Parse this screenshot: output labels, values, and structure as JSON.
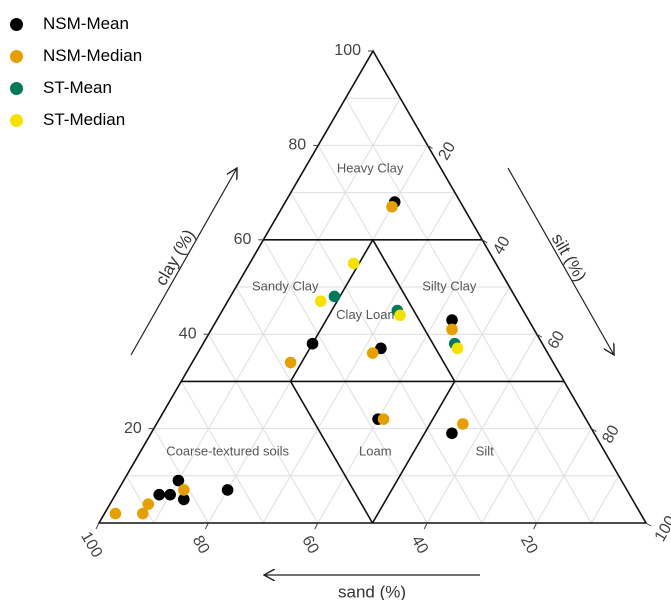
{
  "chart_data": {
    "type": "scatter",
    "subtype": "ternary",
    "axes": {
      "clay": {
        "label": "clay (%)",
        "ticks": [
          "20",
          "40",
          "60",
          "80",
          "100"
        ]
      },
      "silt": {
        "label": "silt (%)",
        "ticks": [
          "20",
          "40",
          "60",
          "80",
          "100"
        ]
      },
      "sand": {
        "label": "sand (%)",
        "ticks": [
          "100",
          "80",
          "60",
          "40",
          "20"
        ]
      }
    },
    "regions": [
      "Heavy Clay",
      "Sandy Clay",
      "Silty Clay",
      "Clay Loam",
      "Coarse-textured soils",
      "Loam",
      "Silt"
    ],
    "legend_position": "top-left",
    "series": [
      {
        "name": "NSM-Mean",
        "color": "#000000",
        "points": [
          {
            "clay": 68,
            "silt": 20
          },
          {
            "clay": 38,
            "silt": 20
          },
          {
            "clay": 37,
            "silt": 33
          },
          {
            "clay": 43,
            "silt": 43
          },
          {
            "clay": 22,
            "silt": 40
          },
          {
            "clay": 19,
            "silt": 55
          },
          {
            "clay": 9,
            "silt": 10
          },
          {
            "clay": 7,
            "silt": 20
          },
          {
            "clay": 5,
            "silt": 13
          },
          {
            "clay": 6,
            "silt": 10
          },
          {
            "clay": 6,
            "silt": 8
          }
        ]
      },
      {
        "name": "NSM-Median",
        "color": "#E69F00",
        "points": [
          {
            "clay": 67,
            "silt": 20
          },
          {
            "clay": 34,
            "silt": 18
          },
          {
            "clay": 36,
            "silt": 32
          },
          {
            "clay": 41,
            "silt": 44
          },
          {
            "clay": 22,
            "silt": 41
          },
          {
            "clay": 21,
            "silt": 56
          },
          {
            "clay": 7,
            "silt": 12
          },
          {
            "clay": 2,
            "silt": 2
          },
          {
            "clay": 2,
            "silt": 7
          },
          {
            "clay": 4,
            "silt": 7
          }
        ]
      },
      {
        "name": "ST-Mean",
        "color": "#00785A",
        "points": [
          {
            "clay": 48,
            "silt": 19
          },
          {
            "clay": 45,
            "silt": 32
          },
          {
            "clay": 38,
            "silt": 46
          }
        ]
      },
      {
        "name": "ST-Median",
        "color": "#F5E100",
        "points": [
          {
            "clay": 55,
            "silt": 19
          },
          {
            "clay": 47,
            "silt": 17
          },
          {
            "clay": 44,
            "silt": 33
          },
          {
            "clay": 37,
            "silt": 47
          }
        ]
      }
    ]
  }
}
